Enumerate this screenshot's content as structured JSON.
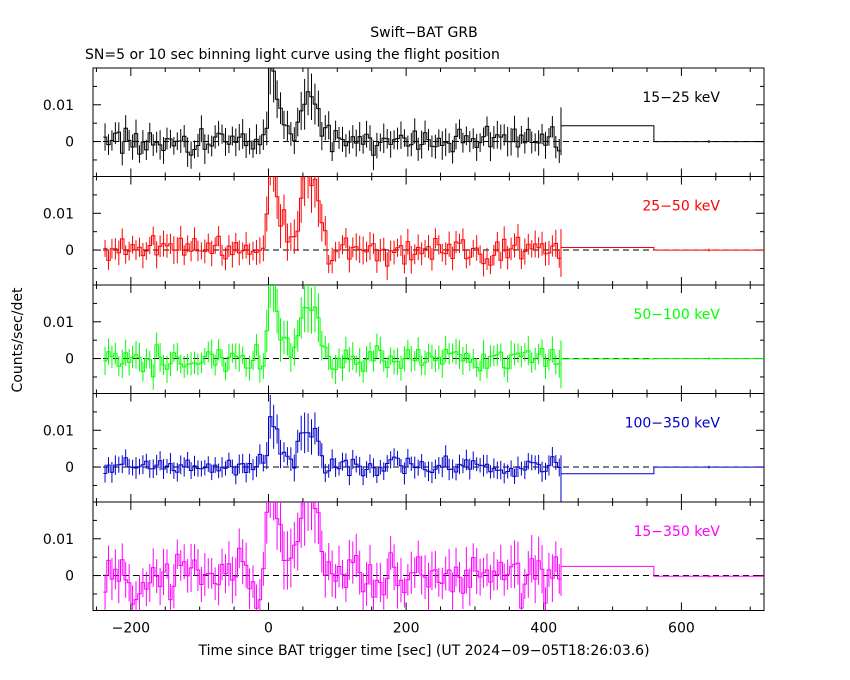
{
  "chart_data": {
    "type": "line",
    "title": "Swift−BAT GRB",
    "subtitle": "SN=5 or 10 sec binning light curve using the flight position",
    "xlabel": "Time since BAT trigger time [sec] (UT 2024−09−05T18:26:03.6)",
    "ylabel": "Counts/sec/det",
    "xlim": [
      -255,
      720
    ],
    "x_ticks": [
      -200,
      0,
      200,
      400,
      600
    ],
    "x_tick_labels": [
      "−200",
      "0",
      "200",
      "400",
      "600"
    ],
    "ylim": [
      -0.0095,
      0.02
    ],
    "y_ticks": [
      0,
      0.01
    ],
    "y_tick_labels": [
      "0",
      "0.01"
    ],
    "panels": [
      {
        "name": "15−25 keV",
        "color": "#000000",
        "noise": 0.0034,
        "burst_scale": 0.55,
        "late_level": 0.0043,
        "tail_level": 0.0
      },
      {
        "name": "25−50 keV",
        "color": "#ff0000",
        "noise": 0.0032,
        "burst_scale": 0.85,
        "late_level": 0.0007,
        "tail_level": 0.0
      },
      {
        "name": "50−100 keV",
        "color": "#00ff00",
        "noise": 0.0033,
        "burst_scale": 0.7,
        "late_level": -0.0001,
        "tail_level": 0.0
      },
      {
        "name": "100−350 keV",
        "color": "#0000cc",
        "noise": 0.0025,
        "burst_scale": 0.45,
        "late_level": -0.0018,
        "tail_level": 0.0
      },
      {
        "name": "15−350 keV",
        "color": "#ff00ff",
        "noise": 0.0055,
        "burst_scale": 1.0,
        "late_level": 0.0025,
        "tail_level": -0.0002
      }
    ]
  }
}
